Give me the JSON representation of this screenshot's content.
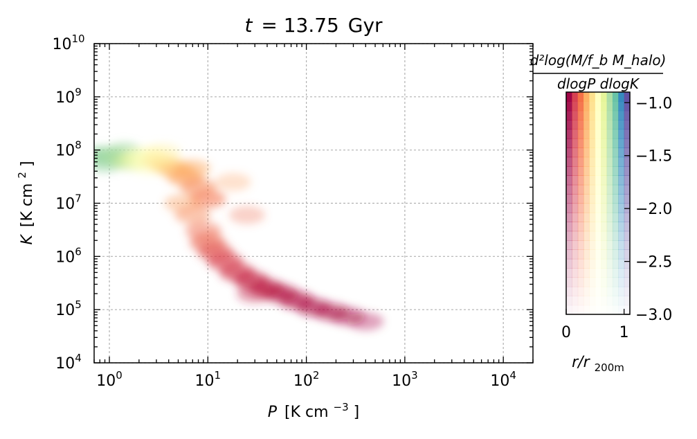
{
  "chart_data": {
    "type": "heatmap",
    "title_var": "t",
    "title_value": "= 13.75",
    "title_unit": "Gyr",
    "xlabel_var": "P",
    "xlabel_unit": "[K cm",
    "xlabel_exp": "−3",
    "xlabel_close": "]",
    "ylabel_var": "K",
    "ylabel_unit": "[K cm",
    "ylabel_exp": "2",
    "ylabel_close": "]",
    "x_scale": "log",
    "y_scale": "log",
    "xlim": [
      0.7,
      20000
    ],
    "ylim": [
      10000,
      10000000000
    ],
    "grid": true,
    "x_ticks": [
      {
        "value": 1,
        "base": "10",
        "exp": "0"
      },
      {
        "value": 10,
        "base": "10",
        "exp": "1"
      },
      {
        "value": 100,
        "base": "10",
        "exp": "2"
      },
      {
        "value": 1000,
        "base": "10",
        "exp": "3"
      },
      {
        "value": 10000,
        "base": "10",
        "exp": "4"
      }
    ],
    "y_ticks": [
      {
        "value": 10000,
        "base": "10",
        "exp": "4"
      },
      {
        "value": 100000,
        "base": "10",
        "exp": "5"
      },
      {
        "value": 1000000,
        "base": "10",
        "exp": "6"
      },
      {
        "value": 10000000,
        "base": "10",
        "exp": "7"
      },
      {
        "value": 100000000,
        "base": "10",
        "exp": "8"
      },
      {
        "value": 1000000000,
        "base": "10",
        "exp": "9"
      },
      {
        "value": 10000000000,
        "base": "10",
        "exp": "10"
      }
    ],
    "colorbar": {
      "label_numerator": "d²log(M/f_b M_halo)",
      "label_denominator": "dlogP dlogK",
      "range": [
        -3.0,
        -0.9
      ],
      "tick_labels": [
        "−1.0",
        "−1.5",
        "−2.0",
        "−2.5",
        "−3.0"
      ],
      "tick_values": [
        -1.0,
        -1.5,
        -2.0,
        -2.5,
        -3.0
      ],
      "x_label": "r/r",
      "x_label_sub": "200m",
      "x_tick_labels": [
        "0",
        "1"
      ],
      "x_range": [
        0,
        1.1
      ],
      "colormap": [
        "#9e0142",
        "#d53e4f",
        "#f46d43",
        "#fdae61",
        "#fee08b",
        "#ffffbf",
        "#e6f598",
        "#abdda4",
        "#66c2a5",
        "#3288bd",
        "#5e4fa2"
      ]
    },
    "points": [
      {
        "P": 0.8,
        "K": 80000000,
        "r": 0.8,
        "w": -1.6
      },
      {
        "P": 1.0,
        "K": 75000000,
        "r": 0.8,
        "w": -1.4
      },
      {
        "P": 1.2,
        "K": 70000000,
        "r": 0.75,
        "w": -1.5
      },
      {
        "P": 0.9,
        "K": 55000000,
        "r": 0.8,
        "w": -2.0
      },
      {
        "P": 1.4,
        "K": 95000000,
        "r": 0.78,
        "w": -1.8
      },
      {
        "P": 1.6,
        "K": 60000000,
        "r": 0.7,
        "w": -1.8
      },
      {
        "P": 2.0,
        "K": 70000000,
        "r": 0.6,
        "w": -1.7
      },
      {
        "P": 2.5,
        "K": 80000000,
        "r": 0.55,
        "w": -1.8
      },
      {
        "P": 2.5,
        "K": 50000000,
        "r": 0.55,
        "w": -2.1
      },
      {
        "P": 3.2,
        "K": 60000000,
        "r": 0.48,
        "w": -1.8
      },
      {
        "P": 4.0,
        "K": 50000000,
        "r": 0.42,
        "w": -1.8
      },
      {
        "P": 3.5,
        "K": 90000000,
        "r": 0.5,
        "w": -2.2
      },
      {
        "P": 5.0,
        "K": 40000000,
        "r": 0.35,
        "w": -1.9
      },
      {
        "P": 6.0,
        "K": 30000000,
        "r": 0.3,
        "w": -1.9
      },
      {
        "P": 7.0,
        "K": 45000000,
        "r": 0.32,
        "w": -2.1
      },
      {
        "P": 8.0,
        "K": 20000000,
        "r": 0.25,
        "w": -2.0
      },
      {
        "P": 10.0,
        "K": 12000000,
        "r": 0.22,
        "w": -1.9
      },
      {
        "P": 5.5,
        "K": 10000000,
        "r": 0.3,
        "w": -2.3
      },
      {
        "P": 7.0,
        "K": 6000000,
        "r": 0.25,
        "w": -2.2
      },
      {
        "P": 9.0,
        "K": 3000000,
        "r": 0.2,
        "w": -2.1
      },
      {
        "P": 10.0,
        "K": 1800000,
        "r": 0.18,
        "w": -1.8
      },
      {
        "P": 12.0,
        "K": 1200000,
        "r": 0.15,
        "w": -1.7
      },
      {
        "P": 15.0,
        "K": 800000,
        "r": 0.12,
        "w": -1.6
      },
      {
        "P": 20.0,
        "K": 500000,
        "r": 0.1,
        "w": -1.5
      },
      {
        "P": 28.0,
        "K": 350000,
        "r": 0.08,
        "w": -1.4
      },
      {
        "P": 40.0,
        "K": 250000,
        "r": 0.06,
        "w": -1.4
      },
      {
        "P": 55.0,
        "K": 200000,
        "r": 0.05,
        "w": -1.5
      },
      {
        "P": 80.0,
        "K": 150000,
        "r": 0.04,
        "w": -1.6
      },
      {
        "P": 120.0,
        "K": 110000,
        "r": 0.03,
        "w": -1.7
      },
      {
        "P": 180.0,
        "K": 90000,
        "r": 0.03,
        "w": -1.9
      },
      {
        "P": 260.0,
        "K": 75000,
        "r": 0.02,
        "w": -2.1
      },
      {
        "P": 400.0,
        "K": 60000,
        "r": 0.02,
        "w": -2.4
      },
      {
        "P": 30.0,
        "K": 200000,
        "r": 0.07,
        "w": -2.2
      },
      {
        "P": 25.0,
        "K": 6000000,
        "r": 0.2,
        "w": -2.6
      },
      {
        "P": 18.0,
        "K": 25000000,
        "r": 0.3,
        "w": -2.6
      }
    ]
  }
}
